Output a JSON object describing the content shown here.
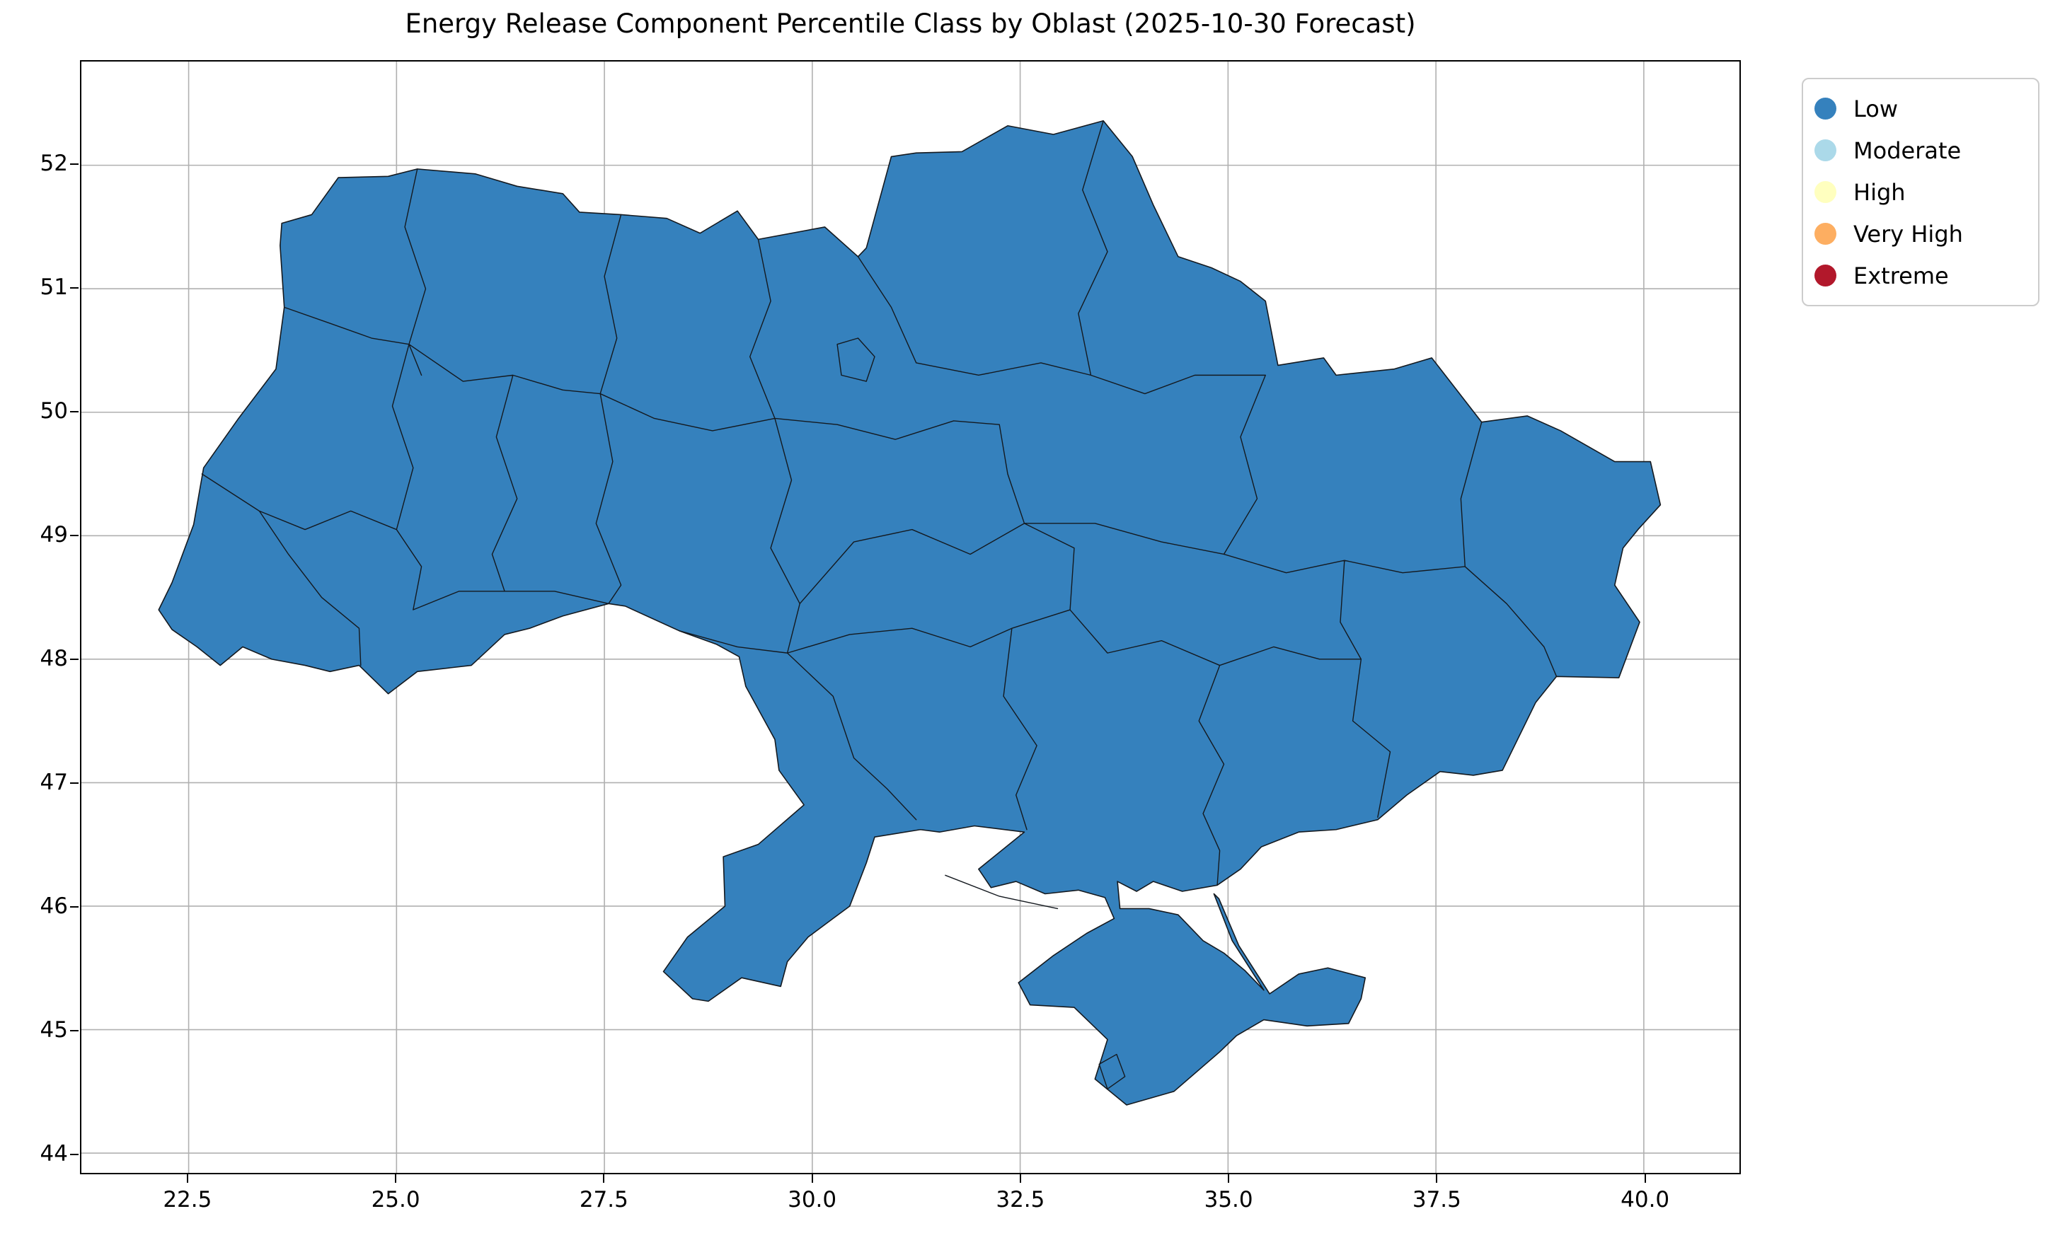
{
  "title": "Energy Release Component Percentile Class by Oblast (2025-10-30 Forecast)",
  "legend": {
    "items": [
      {
        "label": "Low",
        "color": "#3581bd"
      },
      {
        "label": "Moderate",
        "color": "#abd9e9"
      },
      {
        "label": "High",
        "color": "#ffffbf"
      },
      {
        "label": "Very High",
        "color": "#fdae61"
      },
      {
        "label": "Extreme",
        "color": "#b2182b"
      }
    ]
  },
  "axes": {
    "x_ticks": [
      {
        "value": 22.5,
        "label": "22.5"
      },
      {
        "value": 25.0,
        "label": "25.0"
      },
      {
        "value": 27.5,
        "label": "27.5"
      },
      {
        "value": 30.0,
        "label": "30.0"
      },
      {
        "value": 32.5,
        "label": "32.5"
      },
      {
        "value": 35.0,
        "label": "35.0"
      },
      {
        "value": 37.5,
        "label": "37.5"
      },
      {
        "value": 40.0,
        "label": "40.0"
      }
    ],
    "y_ticks": [
      {
        "value": 44,
        "label": "44"
      },
      {
        "value": 45,
        "label": "45"
      },
      {
        "value": 46,
        "label": "46"
      },
      {
        "value": 47,
        "label": "47"
      },
      {
        "value": 48,
        "label": "48"
      },
      {
        "value": 49,
        "label": "49"
      },
      {
        "value": 50,
        "label": "50"
      },
      {
        "value": 51,
        "label": "51"
      },
      {
        "value": 52,
        "label": "52"
      }
    ]
  },
  "map": {
    "region": "Ukraine",
    "fill_class": "Low",
    "fill_color": "#3581bd",
    "border_color": "#14191f",
    "grid_color": "#b0b0b0",
    "spine_color": "#000000"
  },
  "chart_data": {
    "type": "heatmap",
    "subtype": "choropleth_map",
    "title": "Energy Release Component Percentile Class by Oblast (2025-10-30 Forecast)",
    "geography": "Ukraine (oblast boundaries, including Crimea)",
    "forecast_date": "2025-10-30",
    "variable": "Energy Release Component percentile class",
    "classes": [
      {
        "label": "Low",
        "color": "#3581bd"
      },
      {
        "label": "Moderate",
        "color": "#abd9e9"
      },
      {
        "label": "High",
        "color": "#ffffbf"
      },
      {
        "label": "Very High",
        "color": "#fdae61"
      },
      {
        "label": "Extreme",
        "color": "#b2182b"
      }
    ],
    "observation": "Every oblast on the map is filled with the 'Low' class color (uniform blue)",
    "xlabel": "",
    "ylabel": "",
    "x_ticks": [
      22.5,
      25.0,
      27.5,
      30.0,
      32.5,
      35.0,
      37.5,
      40.0
    ],
    "y_ticks": [
      44,
      45,
      46,
      47,
      48,
      49,
      50,
      51,
      52
    ],
    "xlim": [
      21.21,
      41.15
    ],
    "ylim": [
      43.84,
      52.84
    ],
    "grid": true,
    "legend_position": "upper-right, outside plot area"
  }
}
